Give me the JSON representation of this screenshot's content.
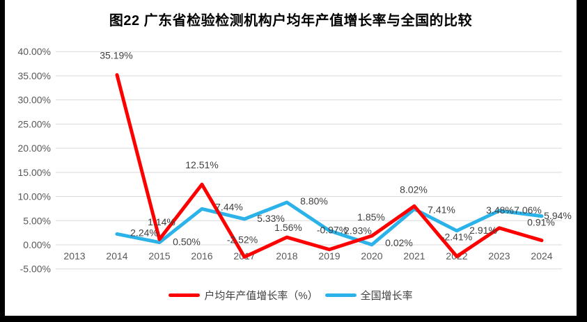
{
  "title": "图22  广东省检验检测机构户均年产值增长率与全国的比较",
  "colors": {
    "guangdong": "#FE0000",
    "national": "#2BB3E9",
    "grid": "#D9D9D9",
    "axis_text": "#595959",
    "label_text": "#3F3F3F",
    "frame": "#000000"
  },
  "chart_data": {
    "type": "line",
    "title": "图22  广东省检验检测机构户均年产值增长率与全国的比较",
    "categories": [
      "2013",
      "2014",
      "2015",
      "2016",
      "2017",
      "2018",
      "2019",
      "2020",
      "2021",
      "2022",
      "2023",
      "2024"
    ],
    "series": [
      {
        "name": "户均年产值增长率（%）",
        "color_key": "guangdong",
        "values": [
          null,
          35.19,
          1.14,
          12.51,
          -2.52,
          1.56,
          -0.97,
          1.85,
          8.02,
          -2.41,
          3.48,
          0.91
        ],
        "labels": [
          "",
          "35.19%",
          "1.14%",
          "12.51%",
          "-2.52%",
          "1.56%",
          "-0.97%",
          "1.85%",
          "8.02%",
          "-2.41%",
          "3.48%",
          "0.91%"
        ],
        "label_offsets": [
          [
            0,
            0
          ],
          [
            -1,
            -28
          ],
          [
            3,
            -25
          ],
          [
            0,
            -28
          ],
          [
            -3,
            -25
          ],
          [
            2,
            -14
          ],
          [
            4,
            -28
          ],
          [
            -1,
            -27
          ],
          [
            -1,
            -24
          ],
          [
            0,
            -28
          ],
          [
            1,
            -26
          ],
          [
            -1,
            -26
          ]
        ]
      },
      {
        "name": "全国增长率",
        "color_key": "national",
        "values": [
          null,
          2.24,
          0.5,
          7.44,
          5.33,
          8.8,
          2.93,
          0.02,
          7.41,
          2.91,
          7.06,
          5.94
        ],
        "labels": [
          "",
          "2.24%",
          "0.50%",
          "7.44%",
          "5.33%",
          "8.80%",
          "2.93%",
          "0.02%",
          "7.41%",
          "2.91%",
          "7.06%",
          "5.94%"
        ],
        "label_offsets": [
          [
            0,
            0
          ],
          [
            39,
            -2
          ],
          [
            39,
            -1
          ],
          [
            39,
            -3
          ],
          [
            38,
            -1
          ],
          [
            39,
            -2
          ],
          [
            41,
            0
          ],
          [
            39,
            -3
          ],
          [
            39,
            1
          ],
          [
            38,
            -1
          ],
          [
            41,
            -1
          ],
          [
            23,
            -1
          ]
        ]
      }
    ],
    "y_ticks": [
      {
        "label": "40.00%",
        "value": 40
      },
      {
        "label": "35.00%",
        "value": 35
      },
      {
        "label": "30.00%",
        "value": 30
      },
      {
        "label": "25.00%",
        "value": 25
      },
      {
        "label": "20.00%",
        "value": 20
      },
      {
        "label": "15.00%",
        "value": 15
      },
      {
        "label": "10.00%",
        "value": 10
      },
      {
        "label": "5.00%",
        "value": 5
      },
      {
        "label": "0.00%",
        "value": 0
      },
      {
        "label": "-5.00%",
        "value": -5
      }
    ],
    "ylim": [
      -5,
      40
    ],
    "grid": true,
    "legend_position": "bottom",
    "xlabel": "",
    "ylabel": ""
  }
}
